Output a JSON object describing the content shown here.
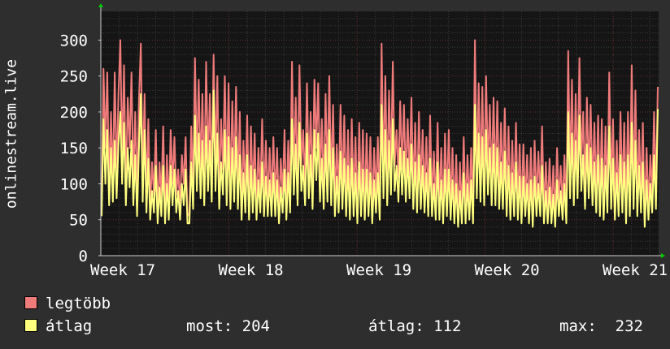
{
  "chart_data": {
    "type": "line",
    "ylabel": "onlinestream.live",
    "ylim": [
      0,
      340
    ],
    "yticks": [
      0,
      50,
      100,
      150,
      200,
      250,
      300
    ],
    "xticks": [
      "Week 17",
      "Week 18",
      "Week 19",
      "Week 20",
      "Week 21"
    ],
    "grid": true,
    "series": [
      {
        "name": "legtöbb",
        "color": "#f07b7b",
        "values": [
          60,
          260,
          150,
          255,
          95,
          200,
          100,
          255,
          110,
          225,
          300,
          135,
          265,
          95,
          220,
          150,
          255,
          100,
          200,
          85,
          215,
          295,
          110,
          225,
          85,
          190,
          65,
          130,
          85,
          175,
          55,
          130,
          80,
          180,
          55,
          140,
          65,
          175,
          100,
          165,
          85,
          120,
          70,
          140,
          100,
          165,
          55,
          60,
          180,
          95,
          275,
          130,
          245,
          115,
          225,
          100,
          270,
          130,
          225,
          105,
          280,
          130,
          250,
          90,
          190,
          120,
          250,
          100,
          240,
          90,
          215,
          110,
          235,
          90,
          200,
          70,
          160,
          90,
          195,
          65,
          180,
          85,
          170,
          65,
          150,
          85,
          190,
          80,
          160,
          75,
          150,
          80,
          165,
          80,
          150,
          60,
          135,
          85,
          175,
          60,
          160,
          80,
          270,
          120,
          220,
          100,
          265,
          125,
          175,
          100,
          240,
          115,
          200,
          90,
          245,
          150,
          240,
          110,
          190,
          90,
          225,
          110,
          250,
          100,
          210,
          80,
          155,
          85,
          210,
          90,
          195,
          75,
          175,
          70,
          190,
          80,
          165,
          60,
          185,
          75,
          175,
          70,
          170,
          75,
          165,
          60,
          150,
          85,
          165,
          65,
          295,
          115,
          250,
          100,
          230,
          120,
          270,
          125,
          175,
          110,
          215,
          120,
          210,
          105,
          190,
          110,
          220,
          90,
          185,
          80,
          200,
          95,
          175,
          85,
          165,
          75,
          195,
          75,
          145,
          70,
          185,
          70,
          150,
          60,
          170,
          80,
          175,
          70,
          150,
          60,
          140,
          55,
          130,
          60,
          165,
          65,
          140,
          70,
          150,
          60,
          300,
          110,
          240,
          105,
          235,
          100,
          250,
          120,
          210,
          100,
          220,
          100,
          215,
          90,
          185,
          95,
          205,
          80,
          180,
          70,
          160,
          80,
          185,
          70,
          155,
          65,
          155,
          75,
          140,
          65,
          150,
          55,
          160,
          75,
          145,
          80,
          180,
          60,
          130,
          65,
          135,
          60,
          125,
          55,
          150,
          75,
          125,
          70,
          140,
          60,
          285,
          115,
          245,
          100,
          225,
          110,
          275,
          125,
          200,
          95,
          220,
          110,
          210,
          95,
          185,
          85,
          195,
          75,
          190,
          70,
          180,
          80,
          255,
          90,
          190,
          70,
          160,
          75,
          200,
          85,
          185,
          65,
          200,
          75,
          265,
          95,
          230,
          75,
          175,
          85,
          185,
          55,
          150,
          70,
          140,
          85,
          200,
          90,
          235
        ]
      },
      {
        "name": "átlag",
        "color": "#ffff80",
        "values": [
          55,
          190,
          100,
          175,
          70,
          150,
          75,
          160,
          80,
          155,
          200,
          100,
          185,
          70,
          150,
          95,
          160,
          70,
          140,
          55,
          150,
          225,
          75,
          175,
          60,
          135,
          50,
          90,
          60,
          125,
          45,
          95,
          55,
          125,
          45,
          100,
          50,
          125,
          70,
          120,
          60,
          90,
          50,
          100,
          70,
          120,
          45,
          45,
          130,
          65,
          195,
          90,
          170,
          80,
          160,
          70,
          180,
          90,
          160,
          75,
          230,
          90,
          170,
          65,
          130,
          85,
          175,
          70,
          165,
          65,
          150,
          75,
          165,
          65,
          140,
          50,
          115,
          60,
          140,
          50,
          125,
          60,
          120,
          50,
          105,
          60,
          130,
          55,
          110,
          55,
          105,
          55,
          115,
          55,
          105,
          45,
          95,
          60,
          120,
          50,
          115,
          60,
          190,
          85,
          155,
          70,
          185,
          90,
          125,
          70,
          170,
          80,
          140,
          65,
          175,
          105,
          170,
          75,
          135,
          65,
          155,
          75,
          175,
          70,
          150,
          55,
          110,
          60,
          145,
          65,
          135,
          55,
          125,
          50,
          135,
          55,
          115,
          45,
          130,
          55,
          120,
          50,
          120,
          55,
          115,
          45,
          105,
          60,
          115,
          50,
          210,
          80,
          175,
          70,
          160,
          85,
          190,
          90,
          125,
          75,
          150,
          85,
          145,
          75,
          135,
          80,
          155,
          65,
          130,
          60,
          140,
          65,
          125,
          60,
          115,
          55,
          135,
          55,
          100,
          50,
          130,
          50,
          105,
          45,
          120,
          55,
          120,
          50,
          105,
          45,
          100,
          40,
          90,
          45,
          115,
          45,
          100,
          50,
          105,
          45,
          210,
          80,
          170,
          75,
          165,
          70,
          175,
          85,
          150,
          70,
          155,
          70,
          150,
          65,
          130,
          65,
          145,
          55,
          125,
          50,
          115,
          55,
          130,
          50,
          110,
          45,
          110,
          55,
          100,
          45,
          105,
          40,
          110,
          55,
          100,
          55,
          125,
          45,
          90,
          45,
          95,
          45,
          85,
          40,
          105,
          55,
          90,
          50,
          100,
          45,
          200,
          80,
          170,
          70,
          160,
          80,
          195,
          90,
          140,
          65,
          155,
          80,
          150,
          70,
          130,
          60,
          140,
          55,
          135,
          50,
          125,
          60,
          180,
          65,
          135,
          50,
          115,
          55,
          140,
          60,
          130,
          45,
          140,
          55,
          185,
          65,
          160,
          55,
          125,
          60,
          130,
          40,
          105,
          50,
          100,
          60,
          140,
          65,
          204
        ]
      }
    ]
  },
  "legend": {
    "items": [
      {
        "label": "legtöbb",
        "color": "#f07b7b"
      },
      {
        "label": "átlag",
        "color": "#ffff80"
      }
    ],
    "stats": {
      "now": "most: 204",
      "avg": "átlag: 112",
      "max": "max:  232"
    }
  }
}
